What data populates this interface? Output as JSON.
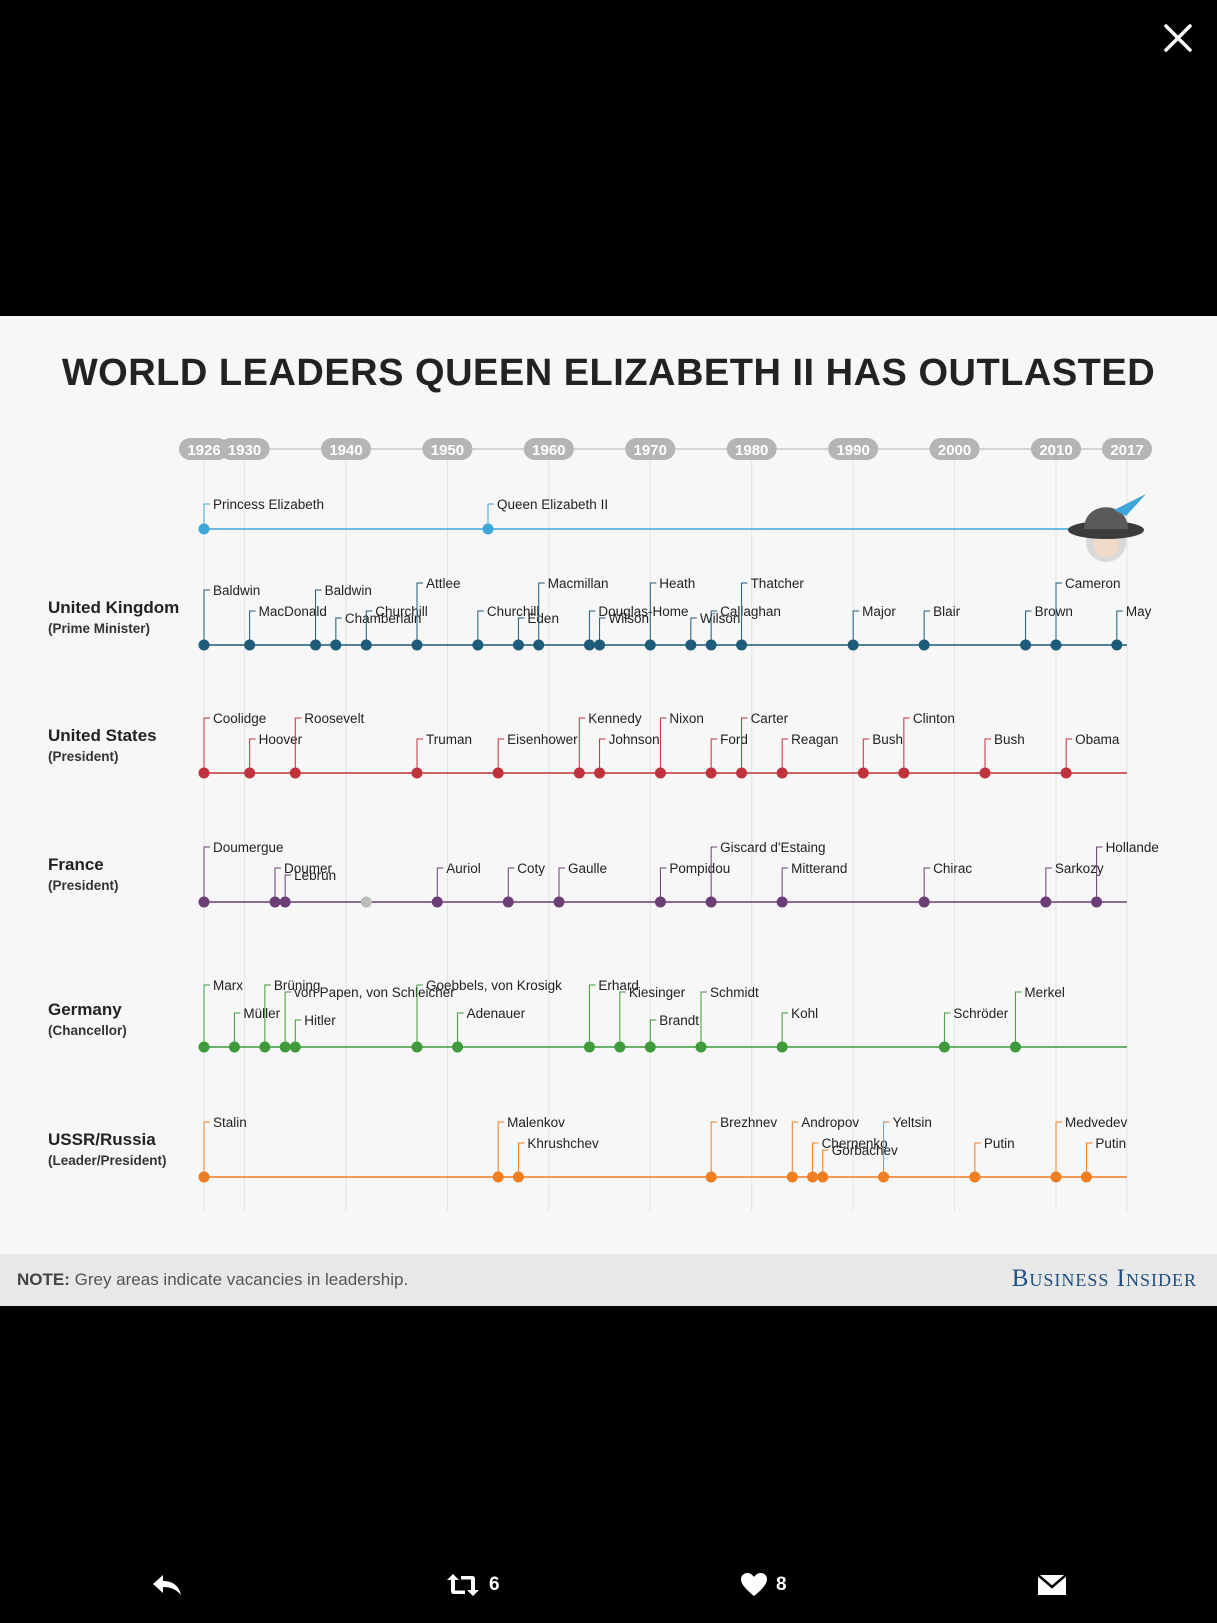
{
  "viewer": {
    "close_icon": "close-icon"
  },
  "infographic": {
    "title": "WORLD LEADERS QUEEN ELIZABETH II HAS OUTLASTED",
    "note_label": "NOTE:",
    "note_text": " Grey areas indicate vacancies in leadership.",
    "brand": "Business Insider"
  },
  "chart_data": {
    "type": "timeline",
    "year_ticks": [
      "1926",
      "1930",
      "1940",
      "1950",
      "1960",
      "1970",
      "1980",
      "1990",
      "2000",
      "2010",
      "2017"
    ],
    "queen": {
      "color": "#3ea6d8",
      "events": [
        {
          "label": "Princess Elizabeth",
          "year": 1926
        },
        {
          "label": "Queen Elizabeth II",
          "year": 1954
        }
      ],
      "end_year": 2017
    },
    "rows": [
      {
        "country": "United Kingdom",
        "role": "(Prime Minister)",
        "color": "#1e5a7a",
        "leaders": [
          {
            "name": "Baldwin",
            "year": 1926,
            "tier": 2
          },
          {
            "name": "MacDonald",
            "year": 1930.5,
            "tier": 1
          },
          {
            "name": "Baldwin",
            "year": 1937,
            "tier": 2
          },
          {
            "name": "Chamberlain",
            "year": 1939,
            "tier": 0
          },
          {
            "name": "Churchill",
            "year": 1942,
            "tier": 1
          },
          {
            "name": "Attlee",
            "year": 1947,
            "tier": 3
          },
          {
            "name": "Churchill",
            "year": 1953,
            "tier": 1
          },
          {
            "name": "Eden",
            "year": 1957,
            "tier": 0
          },
          {
            "name": "Macmillan",
            "year": 1959,
            "tier": 3
          },
          {
            "name": "Douglas-Home",
            "year": 1964,
            "tier": 1
          },
          {
            "name": "Wilson",
            "year": 1965,
            "tier": 0
          },
          {
            "name": "Heath",
            "year": 1970,
            "tier": 3
          },
          {
            "name": "Wilson",
            "year": 1974,
            "tier": 0
          },
          {
            "name": "Callaghan",
            "year": 1976,
            "tier": 1
          },
          {
            "name": "Thatcher",
            "year": 1979,
            "tier": 3
          },
          {
            "name": "Major",
            "year": 1990,
            "tier": 1
          },
          {
            "name": "Blair",
            "year": 1997,
            "tier": 1
          },
          {
            "name": "Brown",
            "year": 2007,
            "tier": 1
          },
          {
            "name": "Cameron",
            "year": 2010,
            "tier": 3
          },
          {
            "name": "May",
            "year": 2016,
            "tier": 1
          }
        ]
      },
      {
        "country": "United States",
        "role": "(President)",
        "color": "#c0333c",
        "leaders": [
          {
            "name": "Coolidge",
            "year": 1926,
            "tier": 2
          },
          {
            "name": "Hoover",
            "year": 1930.5,
            "tier": 1
          },
          {
            "name": "Roosevelt",
            "year": 1935,
            "tier": 2
          },
          {
            "name": "Truman",
            "year": 1947,
            "tier": 1
          },
          {
            "name": "Eisenhower",
            "year": 1955,
            "tier": 1
          },
          {
            "name": "Kennedy",
            "year": 1963,
            "tier": 2
          },
          {
            "name": "Johnson",
            "year": 1965,
            "tier": 1
          },
          {
            "name": "Nixon",
            "year": 1971,
            "tier": 2
          },
          {
            "name": "Ford",
            "year": 1976,
            "tier": 1
          },
          {
            "name": "Carter",
            "year": 1979,
            "tier": 2
          },
          {
            "name": "Reagan",
            "year": 1983,
            "tier": 1
          },
          {
            "name": "Bush",
            "year": 1991,
            "tier": 1
          },
          {
            "name": "Clinton",
            "year": 1995,
            "tier": 2
          },
          {
            "name": "Bush",
            "year": 2003,
            "tier": 1
          },
          {
            "name": "Obama",
            "year": 2011,
            "tier": 1
          }
        ]
      },
      {
        "country": "France",
        "role": "(President)",
        "color": "#6b3e78",
        "vacancy_color": "#bbbbbb",
        "leaders": [
          {
            "name": "Doumergue",
            "year": 1926,
            "tier": 2
          },
          {
            "name": "Doumer",
            "year": 1933,
            "tier": 1
          },
          {
            "name": "Lebrun",
            "year": 1934,
            "tier": 0
          },
          {
            "name": "",
            "year": 1942,
            "tier": -1,
            "vacancy": true
          },
          {
            "name": "Auriol",
            "year": 1949,
            "tier": 1
          },
          {
            "name": "Coty",
            "year": 1956,
            "tier": 1
          },
          {
            "name": "Gaulle",
            "year": 1961,
            "tier": 1
          },
          {
            "name": "Pompidou",
            "year": 1971,
            "tier": 1
          },
          {
            "name": "Giscard d'Estaing",
            "year": 1976,
            "tier": 2
          },
          {
            "name": "Mitterand",
            "year": 1983,
            "tier": 1
          },
          {
            "name": "Chirac",
            "year": 1997,
            "tier": 1
          },
          {
            "name": "Sarkozy",
            "year": 2009,
            "tier": 1
          },
          {
            "name": "Hollande",
            "year": 2014,
            "tier": 2
          }
        ]
      },
      {
        "country": "Germany",
        "role": "(Chancellor)",
        "color": "#3f9a3c",
        "leaders": [
          {
            "name": "Marx",
            "year": 1926,
            "tier": 3
          },
          {
            "name": "Müller",
            "year": 1929,
            "tier": 1
          },
          {
            "name": "Brüning",
            "year": 1932,
            "tier": 3
          },
          {
            "name": "von Papen, von Schleicher",
            "year": 1934,
            "tier": 2
          },
          {
            "name": "Hitler",
            "year": 1935,
            "tier": 0
          },
          {
            "name": "Goebbels, von Krosigk",
            "year": 1947,
            "tier": 3
          },
          {
            "name": "Adenauer",
            "year": 1951,
            "tier": 1
          },
          {
            "name": "Erhard",
            "year": 1964,
            "tier": 3
          },
          {
            "name": "Kiesinger",
            "year": 1967,
            "tier": 2
          },
          {
            "name": "Brandt",
            "year": 1970,
            "tier": 0
          },
          {
            "name": "Schmidt",
            "year": 1975,
            "tier": 2
          },
          {
            "name": "Kohl",
            "year": 1983,
            "tier": 1
          },
          {
            "name": "Schröder",
            "year": 1999,
            "tier": 1
          },
          {
            "name": "Merkel",
            "year": 2006,
            "tier": 2
          }
        ]
      },
      {
        "country": "USSR/Russia",
        "role": "(Leader/President)",
        "color": "#ef7d22",
        "leaders": [
          {
            "name": "Stalin",
            "year": 1926,
            "tier": 2
          },
          {
            "name": "Malenkov",
            "year": 1955,
            "tier": 2
          },
          {
            "name": "Khrushchev",
            "year": 1957,
            "tier": 1
          },
          {
            "name": "Brezhnev",
            "year": 1976,
            "tier": 2
          },
          {
            "name": "Andropov",
            "year": 1984,
            "tier": 2
          },
          {
            "name": "Chernenko",
            "year": 1986,
            "tier": 1
          },
          {
            "name": "Gorbachev",
            "year": 1987,
            "tier": 0
          },
          {
            "name": "Yeltsin",
            "year": 1993,
            "tier": 2
          },
          {
            "name": "Putin",
            "year": 2002,
            "tier": 1
          },
          {
            "name": "Medvedev",
            "year": 2010,
            "tier": 2
          },
          {
            "name": "Putin",
            "year": 2013,
            "tier": 1
          }
        ]
      }
    ]
  },
  "tweet_actions": {
    "reply_icon": "reply-icon",
    "retweet_icon": "retweet-icon",
    "retweet_count": "6",
    "like_icon": "heart-icon",
    "like_count": "8",
    "dm_icon": "direct-message-icon"
  }
}
